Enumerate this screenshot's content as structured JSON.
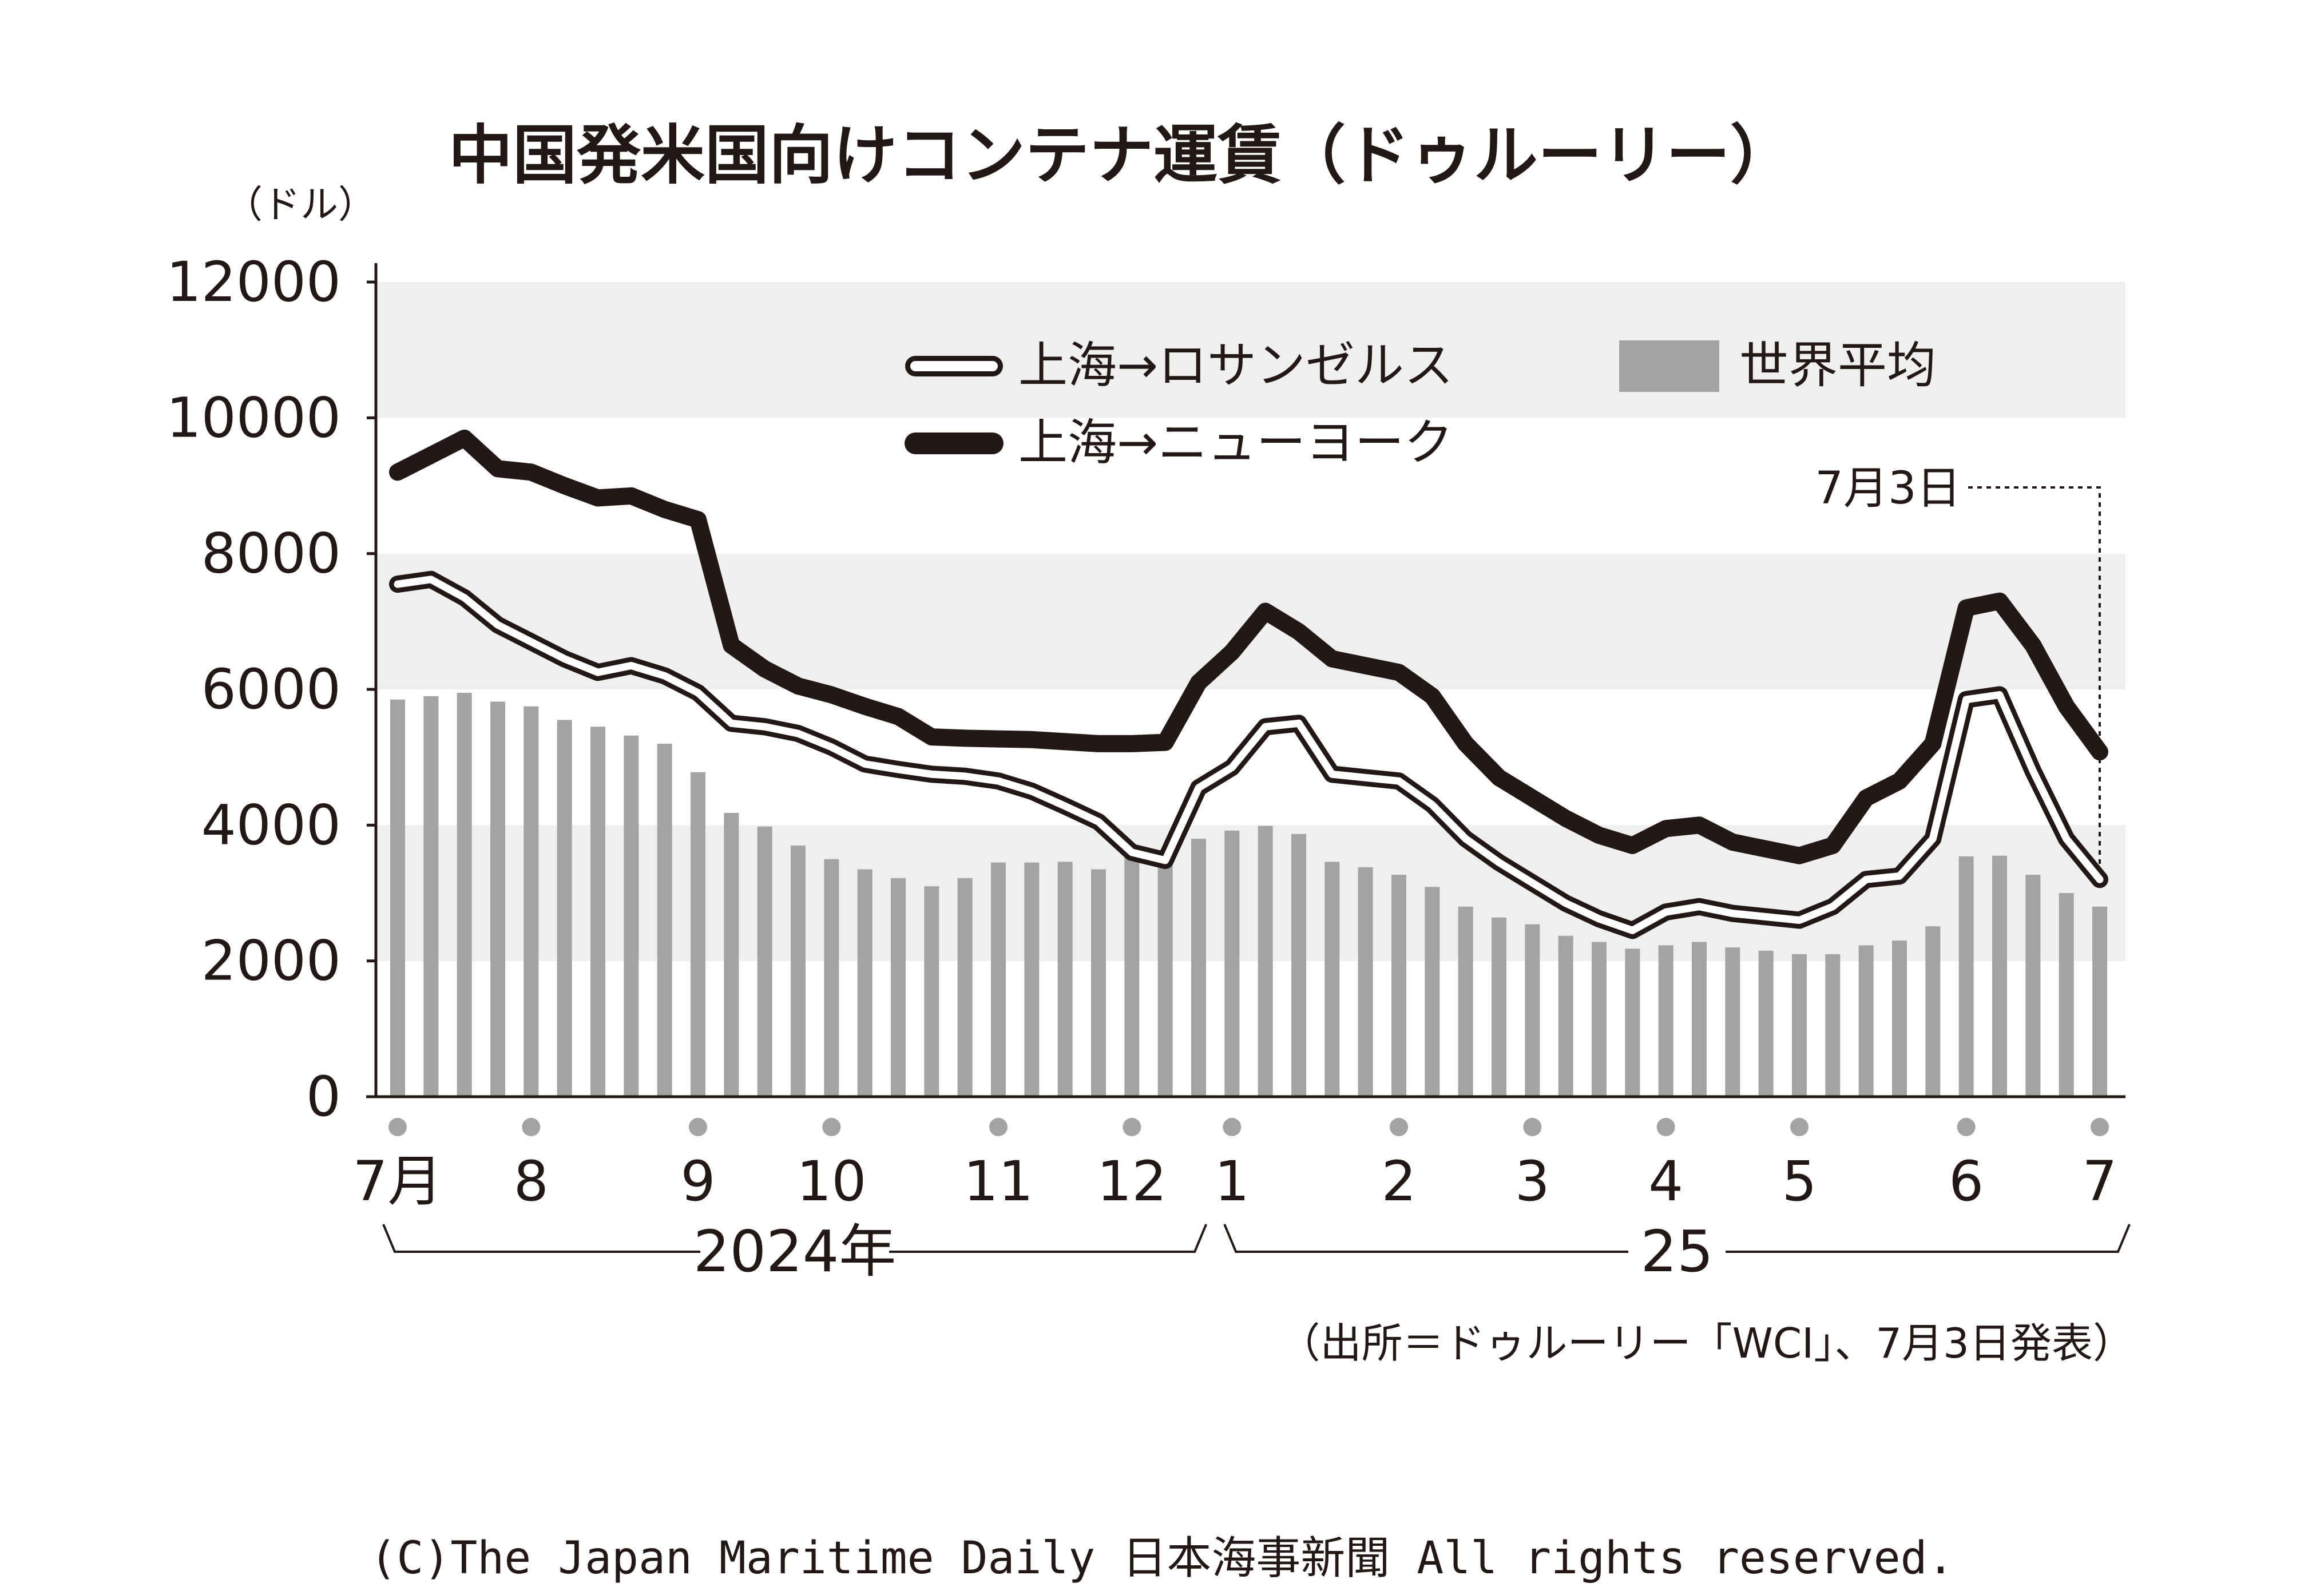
{
  "chart_data": {
    "type": "bar+line",
    "title": "中国発米国向けコンテナ運賃（ドゥルーリー）",
    "y_unit": "（ドル）",
    "y_ticks": [
      "0",
      "2000",
      "4000",
      "6000",
      "8000",
      "10000",
      "12000"
    ],
    "ylim": [
      0,
      12000
    ],
    "grid": "alternating horizontal bands",
    "legend_placement": "top",
    "x_index_range": [
      0,
      51
    ],
    "months": [
      {
        "label": "7月",
        "index": 0
      },
      {
        "label": "8",
        "index": 4
      },
      {
        "label": "9",
        "index": 9
      },
      {
        "label": "10",
        "index": 13
      },
      {
        "label": "11",
        "index": 18
      },
      {
        "label": "12",
        "index": 22
      },
      {
        "label": "1",
        "index": 25
      },
      {
        "label": "2",
        "index": 30
      },
      {
        "label": "3",
        "index": 34
      },
      {
        "label": "4",
        "index": 38
      },
      {
        "label": "5",
        "index": 42
      },
      {
        "label": "6",
        "index": 47
      },
      {
        "label": "7",
        "index": 51
      }
    ],
    "years": [
      {
        "label": "2024年",
        "from": 0,
        "to": 24.5
      },
      {
        "label": "25",
        "from": 24.5,
        "to": 51
      }
    ],
    "annotation": {
      "label": "7月3日",
      "index": 51
    },
    "source": "（出所＝ドゥルーリー「WCI」、7月3日発表）",
    "series": [
      {
        "name": "世界平均",
        "type": "bar",
        "color": "#a3a3a3",
        "values": [
          5850,
          5900,
          5950,
          5820,
          5750,
          5550,
          5450,
          5320,
          5200,
          4780,
          4180,
          3980,
          3700,
          3500,
          3350,
          3220,
          3100,
          3220,
          3450,
          3450,
          3460,
          3350,
          3580,
          3550,
          3800,
          3920,
          3990,
          3870,
          3460,
          3380,
          3270,
          3090,
          2800,
          2640,
          2540,
          2370,
          2280,
          2180,
          2230,
          2280,
          2200,
          2150,
          2100,
          2100,
          2230,
          2300,
          2510,
          3540,
          3550,
          3270,
          3000,
          2800
        ]
      },
      {
        "name": "上海→ロサンゼルス",
        "type": "line",
        "color": "#231815",
        "style": "outline",
        "values": [
          7550,
          7620,
          7350,
          6950,
          6700,
          6450,
          6250,
          6350,
          6200,
          5950,
          5500,
          5450,
          5350,
          5150,
          4900,
          4820,
          4750,
          4720,
          4650,
          4500,
          4280,
          4050,
          3600,
          3480,
          4550,
          4850,
          5450,
          5500,
          4750,
          4700,
          4650,
          4300,
          3800,
          3450,
          3150,
          2850,
          2620,
          2450,
          2720,
          2800,
          2700,
          2650,
          2600,
          2800,
          3200,
          3250,
          3800,
          5850,
          5920,
          4800,
          3800,
          3200
        ]
      },
      {
        "name": "上海→ニューヨーク",
        "type": "line",
        "color": "#231815",
        "style": "thick",
        "values": [
          9200,
          9450,
          9700,
          9250,
          9200,
          9000,
          8820,
          8850,
          8650,
          8500,
          6650,
          6300,
          6050,
          5920,
          5750,
          5600,
          5300,
          5280,
          5270,
          5260,
          5230,
          5200,
          5200,
          5220,
          6100,
          6550,
          7150,
          6850,
          6450,
          6350,
          6250,
          5900,
          5200,
          4700,
          4400,
          4100,
          3850,
          3700,
          3950,
          4000,
          3750,
          3650,
          3550,
          3700,
          4400,
          4650,
          5200,
          7200,
          7300,
          6650,
          5750,
          5080
        ]
      }
    ]
  },
  "copyright": "(C)The Japan Maritime Daily 日本海事新聞 All rights reserved."
}
